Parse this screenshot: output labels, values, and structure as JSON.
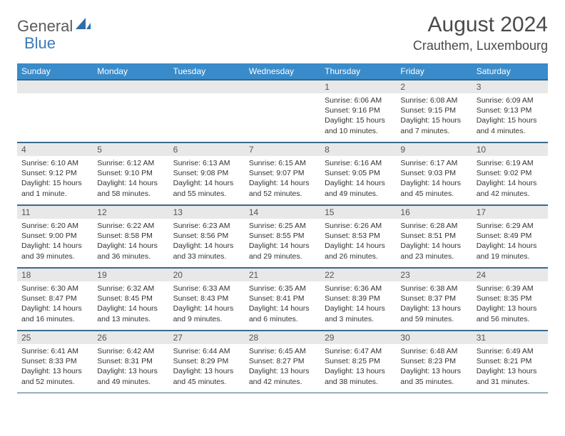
{
  "logo": {
    "part1": "General",
    "part2": "Blue"
  },
  "title": "August 2024",
  "location": "Crauthem, Luxembourg",
  "colors": {
    "header_bg": "#3a8bc9",
    "header_fg": "#ffffff",
    "daynum_bg": "#e8e8e8",
    "border": "#3a6a8a",
    "logo_blue": "#2f6ea8"
  },
  "weekdays": [
    "Sunday",
    "Monday",
    "Tuesday",
    "Wednesday",
    "Thursday",
    "Friday",
    "Saturday"
  ],
  "weeks": [
    [
      {
        "n": "",
        "sr": "",
        "ss": "",
        "dl": ""
      },
      {
        "n": "",
        "sr": "",
        "ss": "",
        "dl": ""
      },
      {
        "n": "",
        "sr": "",
        "ss": "",
        "dl": ""
      },
      {
        "n": "",
        "sr": "",
        "ss": "",
        "dl": ""
      },
      {
        "n": "1",
        "sr": "Sunrise: 6:06 AM",
        "ss": "Sunset: 9:16 PM",
        "dl": "Daylight: 15 hours and 10 minutes."
      },
      {
        "n": "2",
        "sr": "Sunrise: 6:08 AM",
        "ss": "Sunset: 9:15 PM",
        "dl": "Daylight: 15 hours and 7 minutes."
      },
      {
        "n": "3",
        "sr": "Sunrise: 6:09 AM",
        "ss": "Sunset: 9:13 PM",
        "dl": "Daylight: 15 hours and 4 minutes."
      }
    ],
    [
      {
        "n": "4",
        "sr": "Sunrise: 6:10 AM",
        "ss": "Sunset: 9:12 PM",
        "dl": "Daylight: 15 hours and 1 minute."
      },
      {
        "n": "5",
        "sr": "Sunrise: 6:12 AM",
        "ss": "Sunset: 9:10 PM",
        "dl": "Daylight: 14 hours and 58 minutes."
      },
      {
        "n": "6",
        "sr": "Sunrise: 6:13 AM",
        "ss": "Sunset: 9:08 PM",
        "dl": "Daylight: 14 hours and 55 minutes."
      },
      {
        "n": "7",
        "sr": "Sunrise: 6:15 AM",
        "ss": "Sunset: 9:07 PM",
        "dl": "Daylight: 14 hours and 52 minutes."
      },
      {
        "n": "8",
        "sr": "Sunrise: 6:16 AM",
        "ss": "Sunset: 9:05 PM",
        "dl": "Daylight: 14 hours and 49 minutes."
      },
      {
        "n": "9",
        "sr": "Sunrise: 6:17 AM",
        "ss": "Sunset: 9:03 PM",
        "dl": "Daylight: 14 hours and 45 minutes."
      },
      {
        "n": "10",
        "sr": "Sunrise: 6:19 AM",
        "ss": "Sunset: 9:02 PM",
        "dl": "Daylight: 14 hours and 42 minutes."
      }
    ],
    [
      {
        "n": "11",
        "sr": "Sunrise: 6:20 AM",
        "ss": "Sunset: 9:00 PM",
        "dl": "Daylight: 14 hours and 39 minutes."
      },
      {
        "n": "12",
        "sr": "Sunrise: 6:22 AM",
        "ss": "Sunset: 8:58 PM",
        "dl": "Daylight: 14 hours and 36 minutes."
      },
      {
        "n": "13",
        "sr": "Sunrise: 6:23 AM",
        "ss": "Sunset: 8:56 PM",
        "dl": "Daylight: 14 hours and 33 minutes."
      },
      {
        "n": "14",
        "sr": "Sunrise: 6:25 AM",
        "ss": "Sunset: 8:55 PM",
        "dl": "Daylight: 14 hours and 29 minutes."
      },
      {
        "n": "15",
        "sr": "Sunrise: 6:26 AM",
        "ss": "Sunset: 8:53 PM",
        "dl": "Daylight: 14 hours and 26 minutes."
      },
      {
        "n": "16",
        "sr": "Sunrise: 6:28 AM",
        "ss": "Sunset: 8:51 PM",
        "dl": "Daylight: 14 hours and 23 minutes."
      },
      {
        "n": "17",
        "sr": "Sunrise: 6:29 AM",
        "ss": "Sunset: 8:49 PM",
        "dl": "Daylight: 14 hours and 19 minutes."
      }
    ],
    [
      {
        "n": "18",
        "sr": "Sunrise: 6:30 AM",
        "ss": "Sunset: 8:47 PM",
        "dl": "Daylight: 14 hours and 16 minutes."
      },
      {
        "n": "19",
        "sr": "Sunrise: 6:32 AM",
        "ss": "Sunset: 8:45 PM",
        "dl": "Daylight: 14 hours and 13 minutes."
      },
      {
        "n": "20",
        "sr": "Sunrise: 6:33 AM",
        "ss": "Sunset: 8:43 PM",
        "dl": "Daylight: 14 hours and 9 minutes."
      },
      {
        "n": "21",
        "sr": "Sunrise: 6:35 AM",
        "ss": "Sunset: 8:41 PM",
        "dl": "Daylight: 14 hours and 6 minutes."
      },
      {
        "n": "22",
        "sr": "Sunrise: 6:36 AM",
        "ss": "Sunset: 8:39 PM",
        "dl": "Daylight: 14 hours and 3 minutes."
      },
      {
        "n": "23",
        "sr": "Sunrise: 6:38 AM",
        "ss": "Sunset: 8:37 PM",
        "dl": "Daylight: 13 hours and 59 minutes."
      },
      {
        "n": "24",
        "sr": "Sunrise: 6:39 AM",
        "ss": "Sunset: 8:35 PM",
        "dl": "Daylight: 13 hours and 56 minutes."
      }
    ],
    [
      {
        "n": "25",
        "sr": "Sunrise: 6:41 AM",
        "ss": "Sunset: 8:33 PM",
        "dl": "Daylight: 13 hours and 52 minutes."
      },
      {
        "n": "26",
        "sr": "Sunrise: 6:42 AM",
        "ss": "Sunset: 8:31 PM",
        "dl": "Daylight: 13 hours and 49 minutes."
      },
      {
        "n": "27",
        "sr": "Sunrise: 6:44 AM",
        "ss": "Sunset: 8:29 PM",
        "dl": "Daylight: 13 hours and 45 minutes."
      },
      {
        "n": "28",
        "sr": "Sunrise: 6:45 AM",
        "ss": "Sunset: 8:27 PM",
        "dl": "Daylight: 13 hours and 42 minutes."
      },
      {
        "n": "29",
        "sr": "Sunrise: 6:47 AM",
        "ss": "Sunset: 8:25 PM",
        "dl": "Daylight: 13 hours and 38 minutes."
      },
      {
        "n": "30",
        "sr": "Sunrise: 6:48 AM",
        "ss": "Sunset: 8:23 PM",
        "dl": "Daylight: 13 hours and 35 minutes."
      },
      {
        "n": "31",
        "sr": "Sunrise: 6:49 AM",
        "ss": "Sunset: 8:21 PM",
        "dl": "Daylight: 13 hours and 31 minutes."
      }
    ]
  ]
}
